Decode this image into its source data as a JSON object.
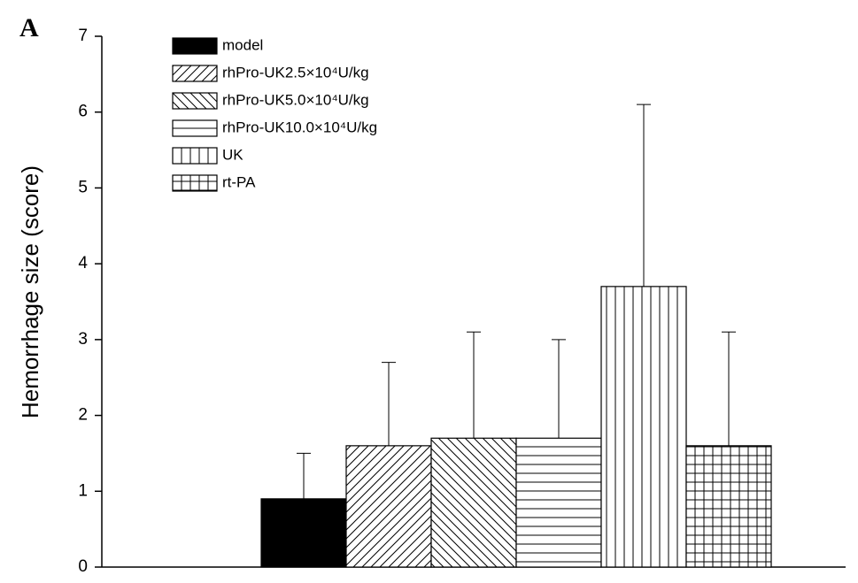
{
  "panel_label": "A",
  "chart_data": {
    "type": "bar",
    "y_label": "Hemorrhage size (score)",
    "categories": [
      null
    ],
    "series": [
      {
        "name": "model",
        "color": "#000000",
        "pattern": "solid",
        "values": [
          0.9
        ],
        "errors": [
          0.6
        ]
      },
      {
        "name": "rhPro-UK2.5×10⁴U/kg",
        "color": "#000000",
        "pattern": "diag-up",
        "values": [
          1.6
        ],
        "errors": [
          1.1
        ]
      },
      {
        "name": "rhPro-UK5.0×10⁴U/kg",
        "color": "#000000",
        "pattern": "diag-down",
        "values": [
          1.7
        ],
        "errors": [
          1.4
        ]
      },
      {
        "name": "rhPro-UK10.0×10⁴U/kg",
        "color": "#000000",
        "pattern": "horizontal",
        "values": [
          1.7
        ],
        "errors": [
          1.3
        ]
      },
      {
        "name": "UK",
        "color": "#000000",
        "pattern": "vertical",
        "values": [
          3.7
        ],
        "errors": [
          2.4
        ]
      },
      {
        "name": "rt-PA",
        "color": "#000000",
        "pattern": "grid",
        "values": [
          1.6
        ],
        "errors": [
          1.5
        ]
      }
    ],
    "ylim": [
      0,
      7
    ],
    "yticks": [
      0,
      1,
      2,
      3,
      4,
      5,
      6,
      7
    ],
    "legend": "top-left"
  }
}
